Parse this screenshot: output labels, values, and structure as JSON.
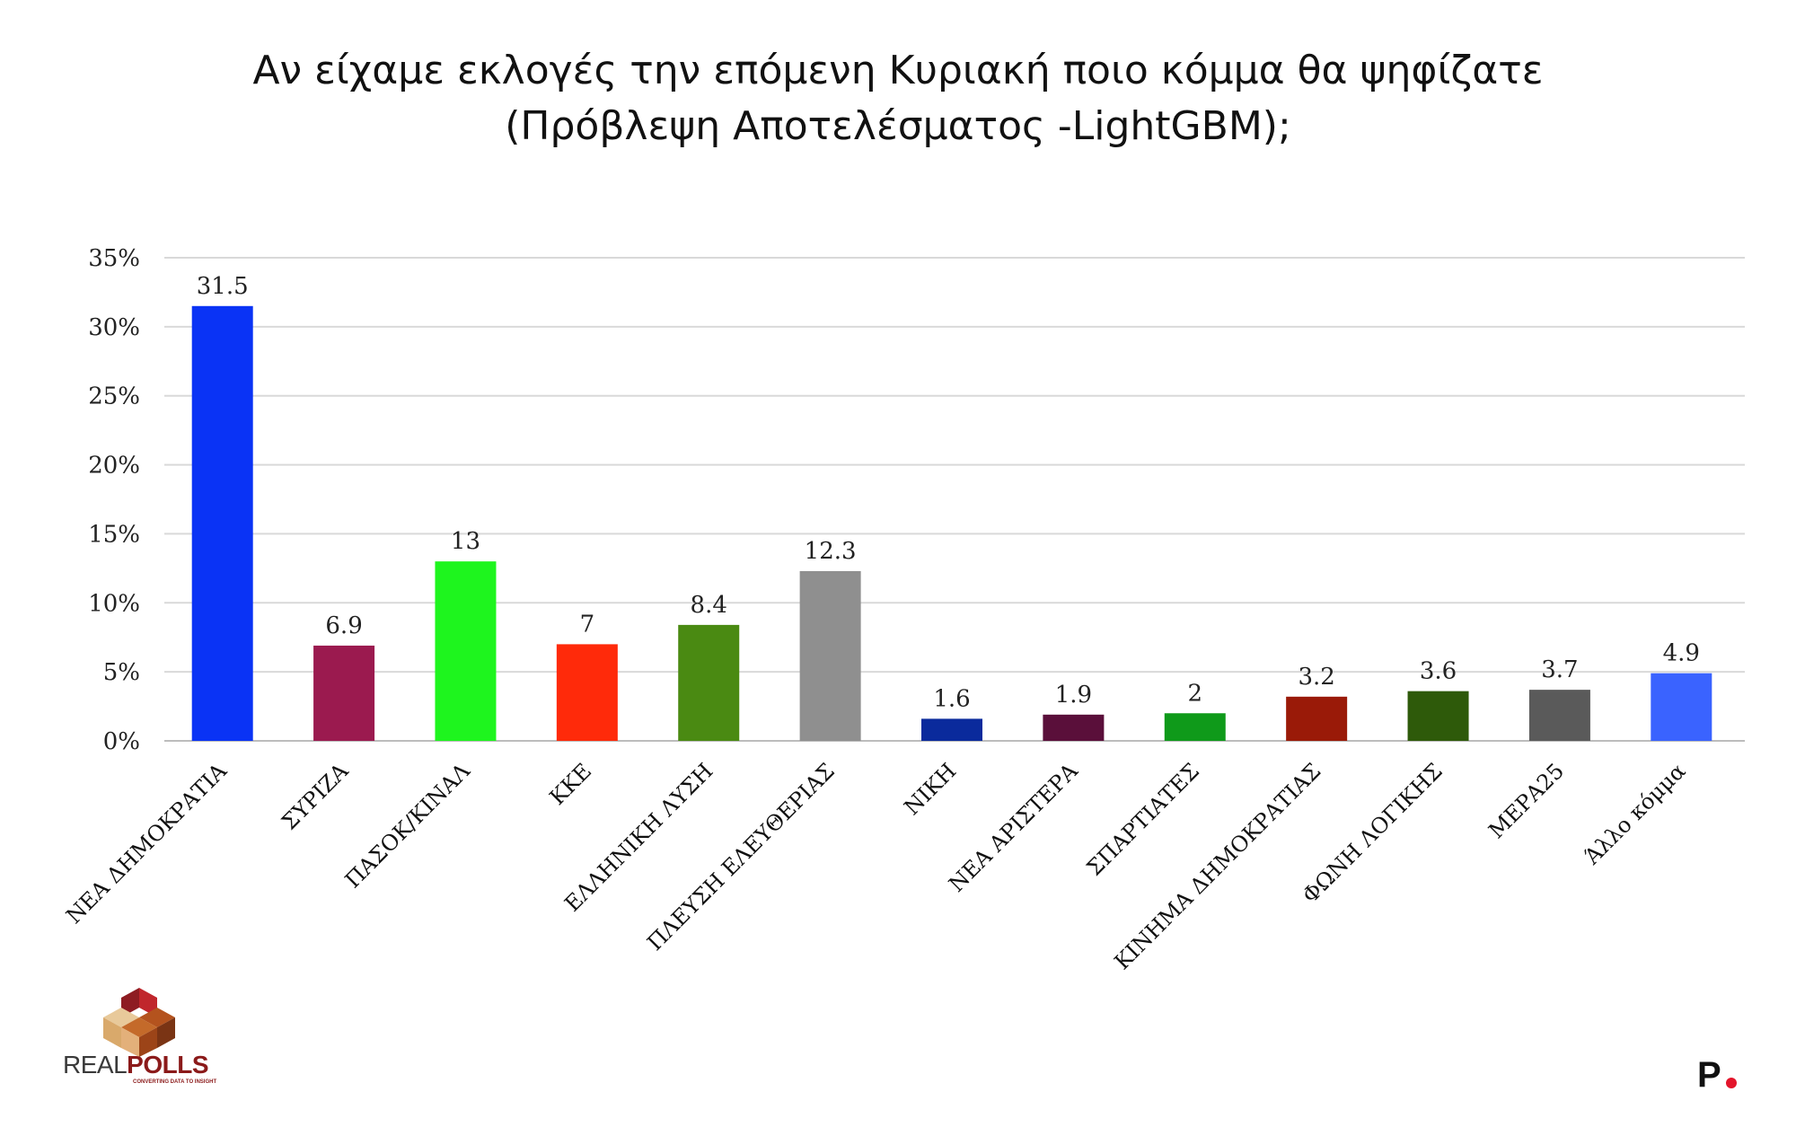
{
  "title": {
    "line1": "Αν είχαμε εκλογές την επόμενη Κυριακή ποιο κόμμα θα ψηφίζατε",
    "line2": "(Πρόβλεψη Αποτελέσματος -LightGBM);"
  },
  "chart_data": {
    "type": "bar",
    "title": "Αν είχαμε εκλογές την επόμενη Κυριακή ποιο κόμμα θα ψηφίζατε (Πρόβλεψη Αποτελέσματος -LightGBM);",
    "categories": [
      "ΝΕΑ ΔΗΜΟΚΡΑΤΙΑ",
      "ΣΥΡΙΖΑ",
      "ΠΑΣΟΚ/ΚΙΝΑΛ",
      "ΚΚΕ",
      "ΕΛΛΗΝΙΚΗ ΛΥΣΗ",
      "ΠΛΕΥΣΗ ΕΛΕΥΘΕΡΙΑΣ",
      "ΝΙΚΗ",
      "ΝΕΑ ΑΡΙΣΤΕΡΑ",
      "ΣΠΑΡΤΙΑΤΕΣ",
      "ΚΙΝΗΜΑ ΔΗΜΟΚΡΑΤΙΑΣ",
      "ΦΩΝΗ ΛΟΓΙΚΗΣ",
      "ΜΕΡΑ25",
      "Άλλο κόμμα"
    ],
    "values": [
      31.5,
      6.9,
      13,
      7,
      8.4,
      12.3,
      1.6,
      1.9,
      2,
      3.2,
      3.6,
      3.7,
      4.9
    ],
    "value_labels": [
      "31.5",
      "6.9",
      "13",
      "7",
      "8.4",
      "12.3",
      "1.6",
      "1.9",
      "2",
      "3.2",
      "3.6",
      "3.7",
      "4.9"
    ],
    "colors": [
      "#0a33f5",
      "#9b1a4f",
      "#1ef51e",
      "#ff2a0a",
      "#4a8a12",
      "#8f8f8f",
      "#0a2a9c",
      "#5a0f3a",
      "#0f9a1a",
      "#9a1a08",
      "#2e5a0a",
      "#5a5a5a",
      "#3a63ff"
    ],
    "ylim": [
      0,
      35
    ],
    "yticks": [
      0,
      5,
      10,
      15,
      20,
      25,
      30,
      35
    ],
    "ytick_labels": [
      "0%",
      "5%",
      "10%",
      "15%",
      "20%",
      "25%",
      "30%",
      "35%"
    ],
    "grid": true,
    "xlabel": "",
    "ylabel": ""
  },
  "logo": {
    "left_text_a": "REAL",
    "left_text_b": "POLLS",
    "left_tagline": "CONVERTING DATA TO INSIGHT",
    "right_mark": "P"
  }
}
